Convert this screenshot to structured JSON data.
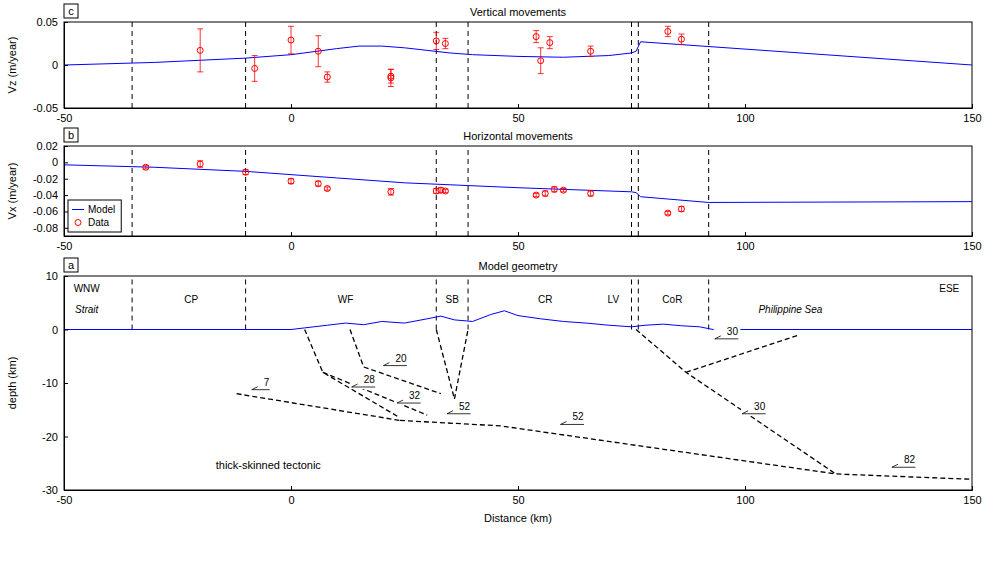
{
  "chart_data": [
    {
      "panel": "c",
      "type": "line",
      "title": "Vertical movements",
      "y_label": "Vz (m/year)",
      "xlim": [
        -50,
        150
      ],
      "xticks": [
        -50,
        0,
        50,
        100,
        150
      ],
      "ylim": [
        -0.05,
        0.05
      ],
      "yticks": [
        -0.05,
        0,
        0.05
      ],
      "boundaries": [
        -35,
        -10,
        32,
        39,
        75,
        76.5,
        92
      ],
      "series": [
        {
          "type": "line",
          "color": "#0000ff",
          "x": [
            -50,
            -30,
            -10,
            0,
            10,
            15,
            20,
            25,
            30,
            35,
            40,
            50,
            60,
            70,
            75,
            76,
            77,
            150
          ],
          "values": [
            0,
            0.003,
            0.008,
            0.012,
            0.019,
            0.022,
            0.022,
            0.02,
            0.017,
            0.014,
            0.012,
            0.01,
            0.009,
            0.011,
            0.014,
            0.016,
            0.027,
            0
          ]
        },
        {
          "type": "scatter",
          "color": "#ff0000",
          "marker": "circle",
          "x": [
            -20,
            -8,
            0,
            6,
            8,
            22,
            22,
            32,
            34,
            54,
            55,
            57,
            66,
            83,
            86
          ],
          "values": [
            0.017,
            -0.004,
            0.029,
            0.016,
            -0.014,
            -0.015,
            -0.013,
            0.028,
            0.025,
            0.033,
            0.005,
            0.026,
            0.016,
            0.039,
            0.03
          ],
          "errors": [
            0.025,
            0.015,
            0.016,
            0.018,
            0.006,
            0.01,
            0.008,
            0.01,
            0.006,
            0.007,
            0.015,
            0.007,
            0.006,
            0.006,
            0.006
          ]
        }
      ]
    },
    {
      "panel": "b",
      "type": "line",
      "title": "Horizontal movements",
      "y_label": "Vx (m/year)",
      "xlim": [
        -50,
        150
      ],
      "xticks": [
        -50,
        0,
        50,
        100,
        150
      ],
      "ylim": [
        -0.09,
        0.02
      ],
      "yticks": [
        -0.08,
        -0.06,
        -0.04,
        -0.02,
        0,
        0.02
      ],
      "boundaries": [
        -35,
        -10,
        32,
        39,
        75,
        76.5,
        92
      ],
      "legend": "lower left",
      "series": [
        {
          "name": "Model",
          "type": "line",
          "color": "#0000ff",
          "x": [
            -50,
            -30,
            -10,
            0,
            10,
            25,
            50,
            75,
            76,
            77,
            92,
            150
          ],
          "values": [
            -0.003,
            -0.006,
            -0.011,
            -0.015,
            -0.019,
            -0.025,
            -0.031,
            -0.036,
            -0.037,
            -0.042,
            -0.049,
            -0.048
          ]
        },
        {
          "name": "Data",
          "type": "scatter",
          "color": "#ff0000",
          "marker": "circle",
          "x": [
            -32,
            -20,
            -10,
            0,
            6,
            8,
            22,
            32,
            33,
            34,
            54,
            56,
            58,
            60,
            66,
            83,
            86
          ],
          "values": [
            -0.006,
            -0.002,
            -0.012,
            -0.023,
            -0.026,
            -0.032,
            -0.036,
            -0.035,
            -0.034,
            -0.035,
            -0.04,
            -0.038,
            -0.033,
            -0.034,
            -0.038,
            -0.062,
            -0.057
          ],
          "errors": [
            0.002,
            0.004,
            0.003,
            0.003,
            0.003,
            0.002,
            0.004,
            0.003,
            0.003,
            0.002,
            0.002,
            0.003,
            0.003,
            0.002,
            0.003,
            0.002,
            0.003
          ]
        }
      ]
    },
    {
      "panel": "a",
      "type": "line",
      "title": "Model geometry",
      "x_label": "Distance (km)",
      "y_label": "depth (km)",
      "xlim": [
        -50,
        150
      ],
      "xticks": [
        -50,
        0,
        50,
        100,
        150
      ],
      "ylim": [
        -30,
        10
      ],
      "yticks": [
        -30,
        -20,
        -10,
        0,
        10
      ],
      "boundaries": [
        -35,
        -10,
        32,
        39,
        75,
        76.5,
        92
      ],
      "boundary_span": [
        0,
        10
      ],
      "series": [
        {
          "type": "line",
          "color": "#0000ff",
          "x": [
            -50,
            0,
            3,
            8,
            12,
            16,
            20,
            25,
            30,
            33,
            36,
            40,
            44,
            47,
            50,
            55,
            60,
            65,
            70,
            75,
            78,
            82,
            86,
            90,
            93,
            150
          ],
          "values": [
            0,
            0,
            0.3,
            0.8,
            1.2,
            0.9,
            1.5,
            1.2,
            2,
            2.5,
            1.8,
            1.5,
            2.8,
            3.5,
            2.6,
            2,
            1.5,
            1.2,
            0.8,
            0.5,
            0.8,
            1,
            0.7,
            0.5,
            0,
            0
          ]
        }
      ],
      "faults": [
        {
          "x": [
            -12,
            24
          ],
          "y": [
            -12,
            -17
          ]
        },
        {
          "x": [
            24,
            46,
            120,
            150
          ],
          "y": [
            -17,
            -18,
            -27,
            -28
          ]
        },
        {
          "x": [
            3,
            7,
            24
          ],
          "y": [
            0,
            -8,
            -16.5
          ]
        },
        {
          "x": [
            7,
            30
          ],
          "y": [
            -8,
            -16
          ]
        },
        {
          "x": [
            13,
            16,
            33
          ],
          "y": [
            0,
            -7,
            -12
          ]
        },
        {
          "x": [
            32,
            36,
            39
          ],
          "y": [
            0,
            -13,
            0
          ]
        },
        {
          "x": [
            76,
            87,
            120
          ],
          "y": [
            0,
            -8,
            -27
          ]
        },
        {
          "x": [
            87,
            112
          ],
          "y": [
            -8,
            -1
          ]
        }
      ],
      "region_labels": [
        {
          "text": "WNW",
          "x": -45,
          "y": 7
        },
        {
          "text": "CP",
          "x": -22,
          "y": 5
        },
        {
          "text": "WF",
          "x": 12,
          "y": 5
        },
        {
          "text": "SB",
          "x": 35.5,
          "y": 5
        },
        {
          "text": "CR",
          "x": 56,
          "y": 5
        },
        {
          "text": "LV",
          "x": 71,
          "y": 5
        },
        {
          "text": "CoR",
          "x": 84,
          "y": 5
        },
        {
          "text": "ESE",
          "x": 145,
          "y": 7
        }
      ],
      "water_labels": [
        {
          "text": "Strait",
          "x": -45,
          "y": 3
        },
        {
          "text": "Philippine Sea",
          "x": 110,
          "y": 3
        }
      ],
      "slip_labels": [
        {
          "value": 7,
          "x": -6,
          "y": -10.5
        },
        {
          "value": 20,
          "x": 23,
          "y": -6
        },
        {
          "value": 28,
          "x": 16,
          "y": -10
        },
        {
          "value": 32,
          "x": 26,
          "y": -13
        },
        {
          "value": 52,
          "x": 37,
          "y": -15
        },
        {
          "value": 52,
          "x": 62,
          "y": -17
        },
        {
          "value": 30,
          "x": 96,
          "y": -1
        },
        {
          "value": 30,
          "x": 102,
          "y": -15
        },
        {
          "value": 82,
          "x": 135,
          "y": -25
        }
      ],
      "annotations": [
        {
          "text": "thick-skinned tectonic",
          "x": -5,
          "y": -26
        }
      ]
    }
  ]
}
